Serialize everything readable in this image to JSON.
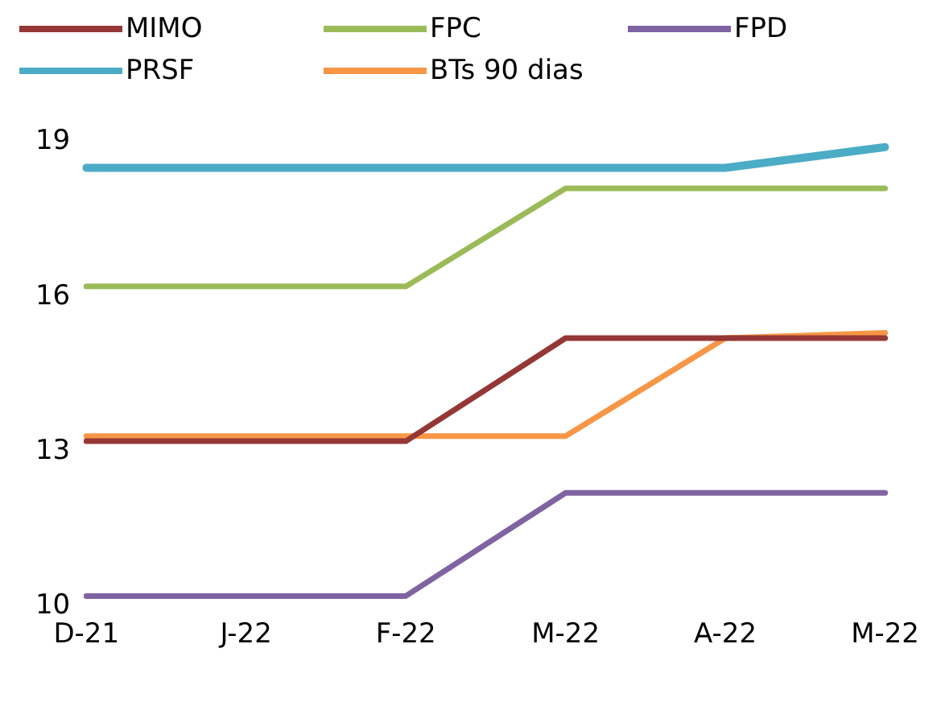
{
  "chart_data": {
    "type": "line",
    "categories": [
      "D-21",
      "J-22",
      "F-22",
      "M-22",
      "A-22",
      "M-22"
    ],
    "series": [
      {
        "name": "MIMO",
        "color": "#953735",
        "values": [
          13.2,
          13.2,
          13.2,
          15.2,
          15.2,
          15.2
        ]
      },
      {
        "name": "FPC",
        "color": "#9bbb59",
        "values": [
          16.2,
          16.2,
          16.2,
          18.1,
          18.1,
          18.1
        ]
      },
      {
        "name": "FPD",
        "color": "#8064a2",
        "values": [
          10.2,
          10.2,
          10.2,
          12.2,
          12.2,
          12.2
        ]
      },
      {
        "name": "PRSF",
        "color": "#4bacc6",
        "values": [
          18.5,
          18.5,
          18.5,
          18.5,
          18.5,
          18.9
        ]
      },
      {
        "name": "BTs 90 dias",
        "color": "#f79646",
        "values": [
          13.3,
          13.3,
          13.3,
          13.3,
          15.2,
          15.3
        ]
      }
    ],
    "ylim": [
      10,
      19
    ],
    "yticks": [
      10,
      13,
      16,
      19
    ],
    "grid": false,
    "legend": "top",
    "marker": "none",
    "line_style": "solid"
  }
}
